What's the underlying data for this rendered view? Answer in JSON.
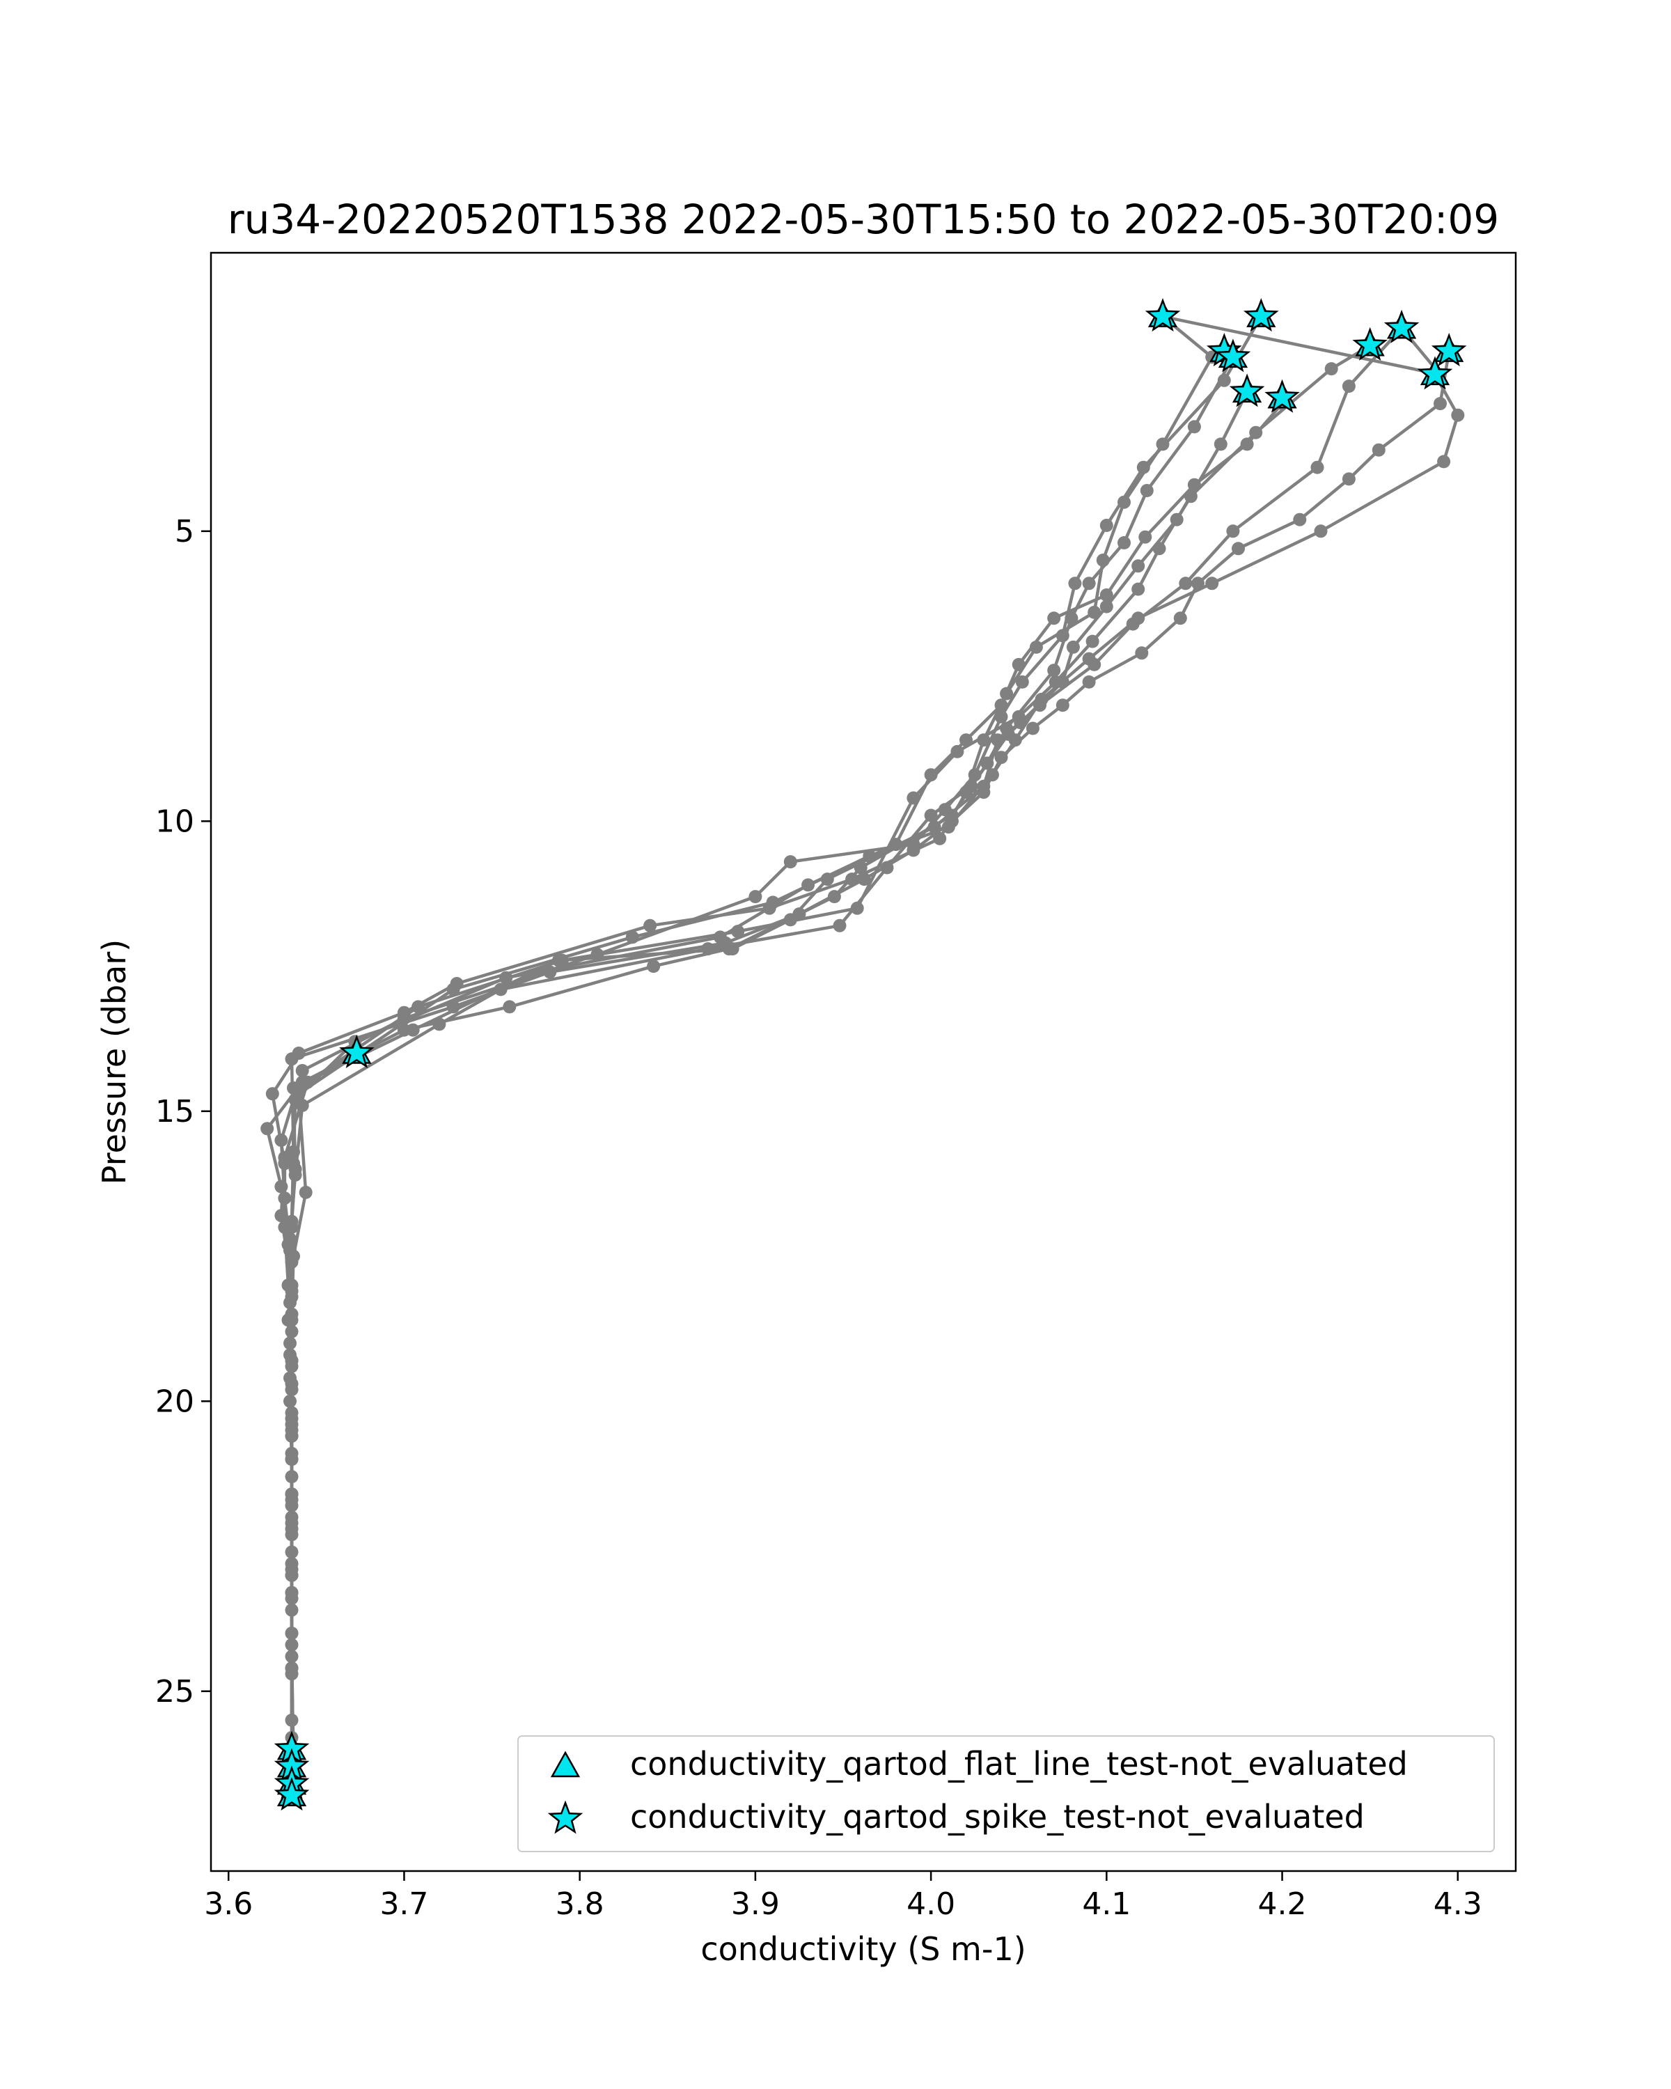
{
  "chart_data": {
    "type": "line",
    "title": "ru34-20220520T1538 2022-05-30T15:50 to 2022-05-30T20:09",
    "xlabel": "conductivity (S m-1)",
    "ylabel": "Pressure (dbar)",
    "xlim": [
      3.59,
      4.333
    ],
    "ylim": [
      28.1,
      0.2
    ],
    "y_inverted": true,
    "grid": false,
    "xticks": [
      3.6,
      3.7,
      3.8,
      3.9,
      4.0,
      4.1,
      4.2,
      4.3
    ],
    "xtick_labels": [
      "3.6",
      "3.7",
      "3.8",
      "3.9",
      "4.0",
      "4.1",
      "4.2",
      "4.3"
    ],
    "yticks": [
      5,
      10,
      15,
      20,
      25
    ],
    "ytick_labels": [
      "5",
      "10",
      "15",
      "20",
      "25"
    ],
    "legend_position": "lower-right",
    "colors": {
      "line": "#808080",
      "marker": "#808080",
      "flag_fill": "#00e5ee",
      "flag_edge": "#000000"
    },
    "legend": [
      {
        "label": "conductivity_qartod_flat_line_test-not_evaluated",
        "marker": "triangle"
      },
      {
        "label": "conductivity_qartod_spike_test-not_evaluated",
        "marker": "star"
      }
    ],
    "series": [
      {
        "x": [
          4.132,
          4.16,
          4.132,
          4.11,
          4.098,
          4.093,
          4.06,
          4.043,
          4.03,
          4.02,
          4.005,
          3.955,
          3.908,
          3.84,
          3.73,
          3.7,
          3.64,
          3.625,
          3.632,
          3.632,
          3.634,
          3.635,
          3.635,
          3.636,
          3.636,
          3.636,
          3.636,
          3.636
        ],
        "y": [
          1.3,
          2.0,
          3.5,
          4.5,
          5.5,
          6.4,
          7.0,
          7.8,
          8.6,
          9.5,
          10.3,
          11.0,
          11.5,
          11.8,
          12.8,
          13.3,
          14.0,
          14.7,
          15.9,
          17.0,
          18.0,
          19.0,
          20.0,
          21.0,
          22.0,
          23.0,
          24.0,
          25.5
        ]
      },
      {
        "x": [
          4.188,
          4.167,
          4.121,
          4.1,
          4.082,
          4.075,
          4.052,
          4.04,
          4.025,
          4.008,
          3.99,
          3.92,
          3.9,
          3.81,
          3.7,
          3.642,
          3.63,
          3.632,
          3.636,
          3.634,
          3.635,
          3.636,
          3.636,
          3.636,
          3.636,
          3.636,
          3.637
        ],
        "y": [
          1.3,
          2.4,
          3.9,
          4.9,
          5.9,
          6.8,
          7.6,
          8.2,
          9.2,
          9.8,
          10.4,
          10.7,
          11.3,
          12.3,
          13.4,
          14.3,
          15.5,
          16.5,
          17.6,
          18.6,
          19.6,
          20.6,
          21.6,
          22.6,
          23.6,
          24.6,
          26.0
        ]
      },
      {
        "x": [
          4.172,
          4.15,
          4.123,
          4.11,
          4.09,
          4.08,
          4.07,
          4.043,
          4.032,
          4.012,
          3.96,
          3.945,
          3.885,
          3.842,
          3.76,
          3.7,
          3.642,
          3.622,
          3.63,
          3.634,
          3.635,
          3.636,
          3.636,
          3.636,
          3.636,
          3.636,
          3.636
        ],
        "y": [
          2.0,
          3.2,
          4.3,
          5.2,
          5.9,
          6.5,
          7.4,
          8.4,
          9.0,
          9.9,
          10.8,
          11.3,
          12.2,
          12.5,
          13.2,
          13.6,
          14.5,
          15.3,
          16.3,
          17.3,
          18.3,
          19.3,
          20.3,
          21.3,
          22.3,
          23.3,
          26.3
        ]
      },
      {
        "x": [
          4.18,
          4.165,
          4.14,
          4.118,
          4.1,
          4.081,
          4.075,
          4.051,
          4.038,
          4.03,
          4.002,
          3.941,
          3.92,
          3.887,
          3.788,
          3.705,
          3.637,
          3.638,
          3.635,
          3.636,
          3.636,
          3.636,
          3.636,
          3.636,
          3.636,
          3.637
        ],
        "y": [
          2.6,
          3.5,
          4.8,
          5.6,
          6.3,
          7.0,
          7.6,
          8.3,
          8.6,
          9.4,
          10.1,
          11.0,
          11.7,
          12.2,
          12.4,
          13.6,
          14.6,
          16.0,
          17.4,
          18.8,
          20.2,
          21.6,
          23.0,
          24.4,
          25.8,
          26.6
        ]
      },
      {
        "x": [
          4.2,
          4.18,
          4.15,
          4.122,
          4.1,
          4.07,
          4.05,
          4.04,
          4.02,
          4.0,
          3.98,
          3.93,
          3.88,
          3.758,
          3.672,
          3.638,
          3.637,
          3.636,
          3.636,
          3.636,
          3.636,
          3.636,
          3.636,
          3.636,
          3.637
        ],
        "y": [
          2.8,
          3.5,
          4.2,
          5.1,
          6.1,
          6.5,
          7.3,
          8.0,
          8.6,
          9.2,
          10.4,
          11.1,
          12.0,
          12.7,
          13.8,
          14.8,
          15.9,
          17.0,
          18.2,
          19.4,
          20.6,
          21.8,
          23.0,
          24.2,
          26.7
        ]
      },
      {
        "x": [
          4.25,
          4.228,
          4.185,
          4.148,
          4.13,
          4.118,
          4.092,
          4.071,
          4.05,
          4.015,
          3.99,
          3.958,
          3.89,
          3.79,
          3.708,
          3.645,
          3.632,
          3.63,
          3.636,
          3.635,
          3.636,
          3.636,
          3.636,
          3.636,
          3.637
        ],
        "y": [
          1.8,
          2.2,
          3.3,
          4.4,
          5.3,
          6.0,
          6.9,
          7.6,
          8.2,
          8.8,
          9.6,
          11.5,
          11.9,
          12.4,
          13.2,
          14.5,
          15.8,
          16.8,
          18.0,
          19.2,
          20.4,
          21.6,
          22.8,
          24.0,
          26.8
        ]
      },
      {
        "x": [
          4.268,
          4.238,
          4.22,
          4.172,
          4.145,
          4.115,
          4.093,
          4.062,
          4.044,
          4.023,
          4.0,
          3.975,
          3.948,
          3.873,
          3.755,
          3.72,
          3.642,
          3.638,
          3.635,
          3.636,
          3.636,
          3.636,
          3.636,
          3.636,
          3.636
        ],
        "y": [
          1.5,
          2.5,
          3.9,
          5.0,
          5.9,
          6.6,
          7.3,
          8.0,
          8.5,
          9.4,
          9.9,
          10.8,
          11.8,
          12.2,
          12.9,
          13.5,
          14.9,
          16.1,
          17.2,
          18.5,
          19.7,
          20.9,
          22.1,
          23.3,
          24.7
        ]
      },
      {
        "x": [
          4.287,
          4.3,
          4.292,
          4.222,
          4.16,
          4.118,
          4.09,
          4.063,
          4.048,
          4.035,
          4.01,
          3.965,
          3.91,
          3.83,
          3.728,
          3.64,
          3.644,
          3.637,
          3.636,
          3.636,
          3.636,
          3.636,
          3.636,
          3.636,
          3.637
        ],
        "y": [
          2.3,
          3.0,
          3.8,
          5.0,
          5.9,
          6.5,
          7.2,
          7.9,
          8.6,
          9.2,
          10.1,
          10.6,
          11.4,
          12.0,
          12.9,
          14.7,
          16.4,
          17.5,
          18.6,
          19.8,
          21.0,
          22.2,
          23.4,
          24.6,
          26.5
        ]
      },
      {
        "x": [
          4.295,
          4.29,
          4.255,
          4.238,
          4.21,
          4.175,
          4.152,
          4.142,
          4.12,
          4.09,
          4.075,
          4.058,
          4.04,
          4.03,
          4.012,
          3.99,
          3.962,
          3.925,
          3.883,
          3.783,
          3.728,
          3.636,
          3.637,
          3.636,
          3.636,
          3.636,
          3.636,
          3.636,
          3.636
        ],
        "y": [
          1.9,
          2.8,
          3.6,
          4.1,
          4.8,
          5.3,
          5.9,
          6.5,
          7.1,
          7.6,
          8.0,
          8.4,
          8.9,
          9.5,
          10.0,
          10.5,
          11.0,
          11.6,
          12.1,
          12.6,
          13.2,
          14.1,
          15.7,
          16.9,
          18.1,
          19.3,
          20.5,
          21.7,
          22.9
        ]
      }
    ],
    "connectors": [
      {
        "x": [
          4.132,
          4.29
        ],
        "y": [
          1.3,
          2.3
        ]
      },
      {
        "x": [
          4.268,
          4.29
        ],
        "y": [
          1.5,
          2.3
        ]
      }
    ],
    "flagged_points": {
      "x": [
        4.132,
        4.188,
        4.167,
        4.172,
        4.18,
        4.2,
        4.25,
        4.268,
        4.295,
        4.287,
        3.673,
        3.636,
        3.636,
        3.636,
        3.636
      ],
      "y": [
        1.3,
        1.3,
        1.9,
        2.0,
        2.6,
        2.7,
        1.8,
        1.5,
        1.9,
        2.3,
        14.0,
        26.0,
        26.3,
        26.6,
        26.8
      ]
    }
  }
}
